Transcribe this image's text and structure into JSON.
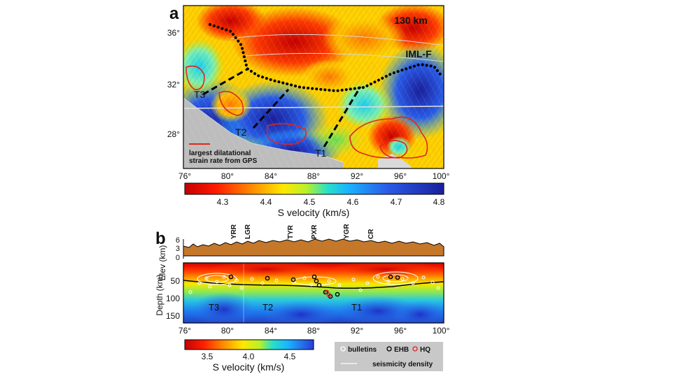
{
  "panel_a": {
    "letter": "a",
    "depth_label": "130 km",
    "fault_label": "IML-F",
    "region_labels": [
      "T3",
      "T2",
      "T1"
    ],
    "gps_note_line1": "largest dilatational",
    "gps_note_line2": "strain rate from GPS",
    "x_ticks": [
      "76°",
      "80°",
      "84°",
      "88°",
      "92°",
      "96°",
      "100°"
    ],
    "y_ticks": [
      "36°",
      "32°",
      "28°"
    ],
    "colorbar_ticks": [
      "4.3",
      "4.4",
      "4.5",
      "4.6",
      "4.7",
      "4.8"
    ],
    "colorbar_label": "S velocity (km/s)"
  },
  "panel_b": {
    "letter": "b",
    "elev_label": "Elev (km)",
    "elev_ticks": [
      "6",
      "3",
      "0"
    ],
    "depth_label": "Depth (km)",
    "depth_ticks": [
      "50",
      "100",
      "150"
    ],
    "x_ticks": [
      "76°",
      "80°",
      "84°",
      "88°",
      "92°",
      "96°",
      "100°"
    ],
    "rift_labels": [
      "YRR",
      "LGR",
      "TYR",
      "PXR",
      "YGR",
      "CR"
    ],
    "region_labels": [
      "T3",
      "T2",
      "T1"
    ],
    "colorbar_ticks": [
      "3.5",
      "4.0",
      "4.5"
    ],
    "colorbar_label": "S velocity (km/s)",
    "legend": {
      "bulletins": "bulletins",
      "ehb": "EHB",
      "hq": "HQ",
      "density": "seismicity density"
    }
  },
  "colors": {
    "vel_slow": "#d40000",
    "vel_mid": "#f5e700",
    "vel_fast": "#1f2fb0",
    "topography": "#c5782a",
    "hq_marker": "#e0261e",
    "gps_contour": "#e0261e"
  },
  "chart_data": [
    {
      "type": "heatmap",
      "title": "130 km",
      "xlabel": "",
      "ylabel": "",
      "x_range": [
        76,
        100
      ],
      "y_range": [
        26,
        38
      ],
      "x_ticks": [
        76,
        80,
        84,
        88,
        92,
        96,
        100
      ],
      "y_ticks": [
        36,
        32,
        28
      ],
      "colorbar": {
        "label": "S velocity (km/s)",
        "range": [
          4.2,
          4.8
        ],
        "ticks": [
          4.3,
          4.4,
          4.5,
          4.6,
          4.7,
          4.8
        ]
      },
      "annotations": [
        "IML-F",
        "T3",
        "T2",
        "T1",
        "largest dilatational strain rate from GPS"
      ]
    },
    {
      "type": "heatmap",
      "title": "",
      "xlabel": "",
      "ylabel": "Depth (km)",
      "x_range": [
        76,
        100
      ],
      "depth_range": [
        0,
        180
      ],
      "elev_range": [
        0,
        6
      ],
      "x_ticks": [
        76,
        80,
        84,
        88,
        92,
        96,
        100
      ],
      "depth_ticks": [
        50,
        100,
        150
      ],
      "elev_ticks": [
        6,
        3,
        0
      ],
      "rifts": [
        {
          "name": "YRR",
          "lon": 81.0
        },
        {
          "name": "LGR",
          "lon": 82.5
        },
        {
          "name": "TYR",
          "lon": 85.8
        },
        {
          "name": "PXR",
          "lon": 88.3
        },
        {
          "name": "YGR",
          "lon": 91.2
        },
        {
          "name": "CR",
          "lon": 93.5
        }
      ],
      "colorbar": {
        "label": "S velocity (km/s)",
        "range": [
          3.2,
          4.8
        ],
        "ticks": [
          3.5,
          4.0,
          4.5
        ]
      },
      "legend": [
        "bulletins",
        "EHB",
        "HQ",
        "seismicity density"
      ]
    }
  ]
}
